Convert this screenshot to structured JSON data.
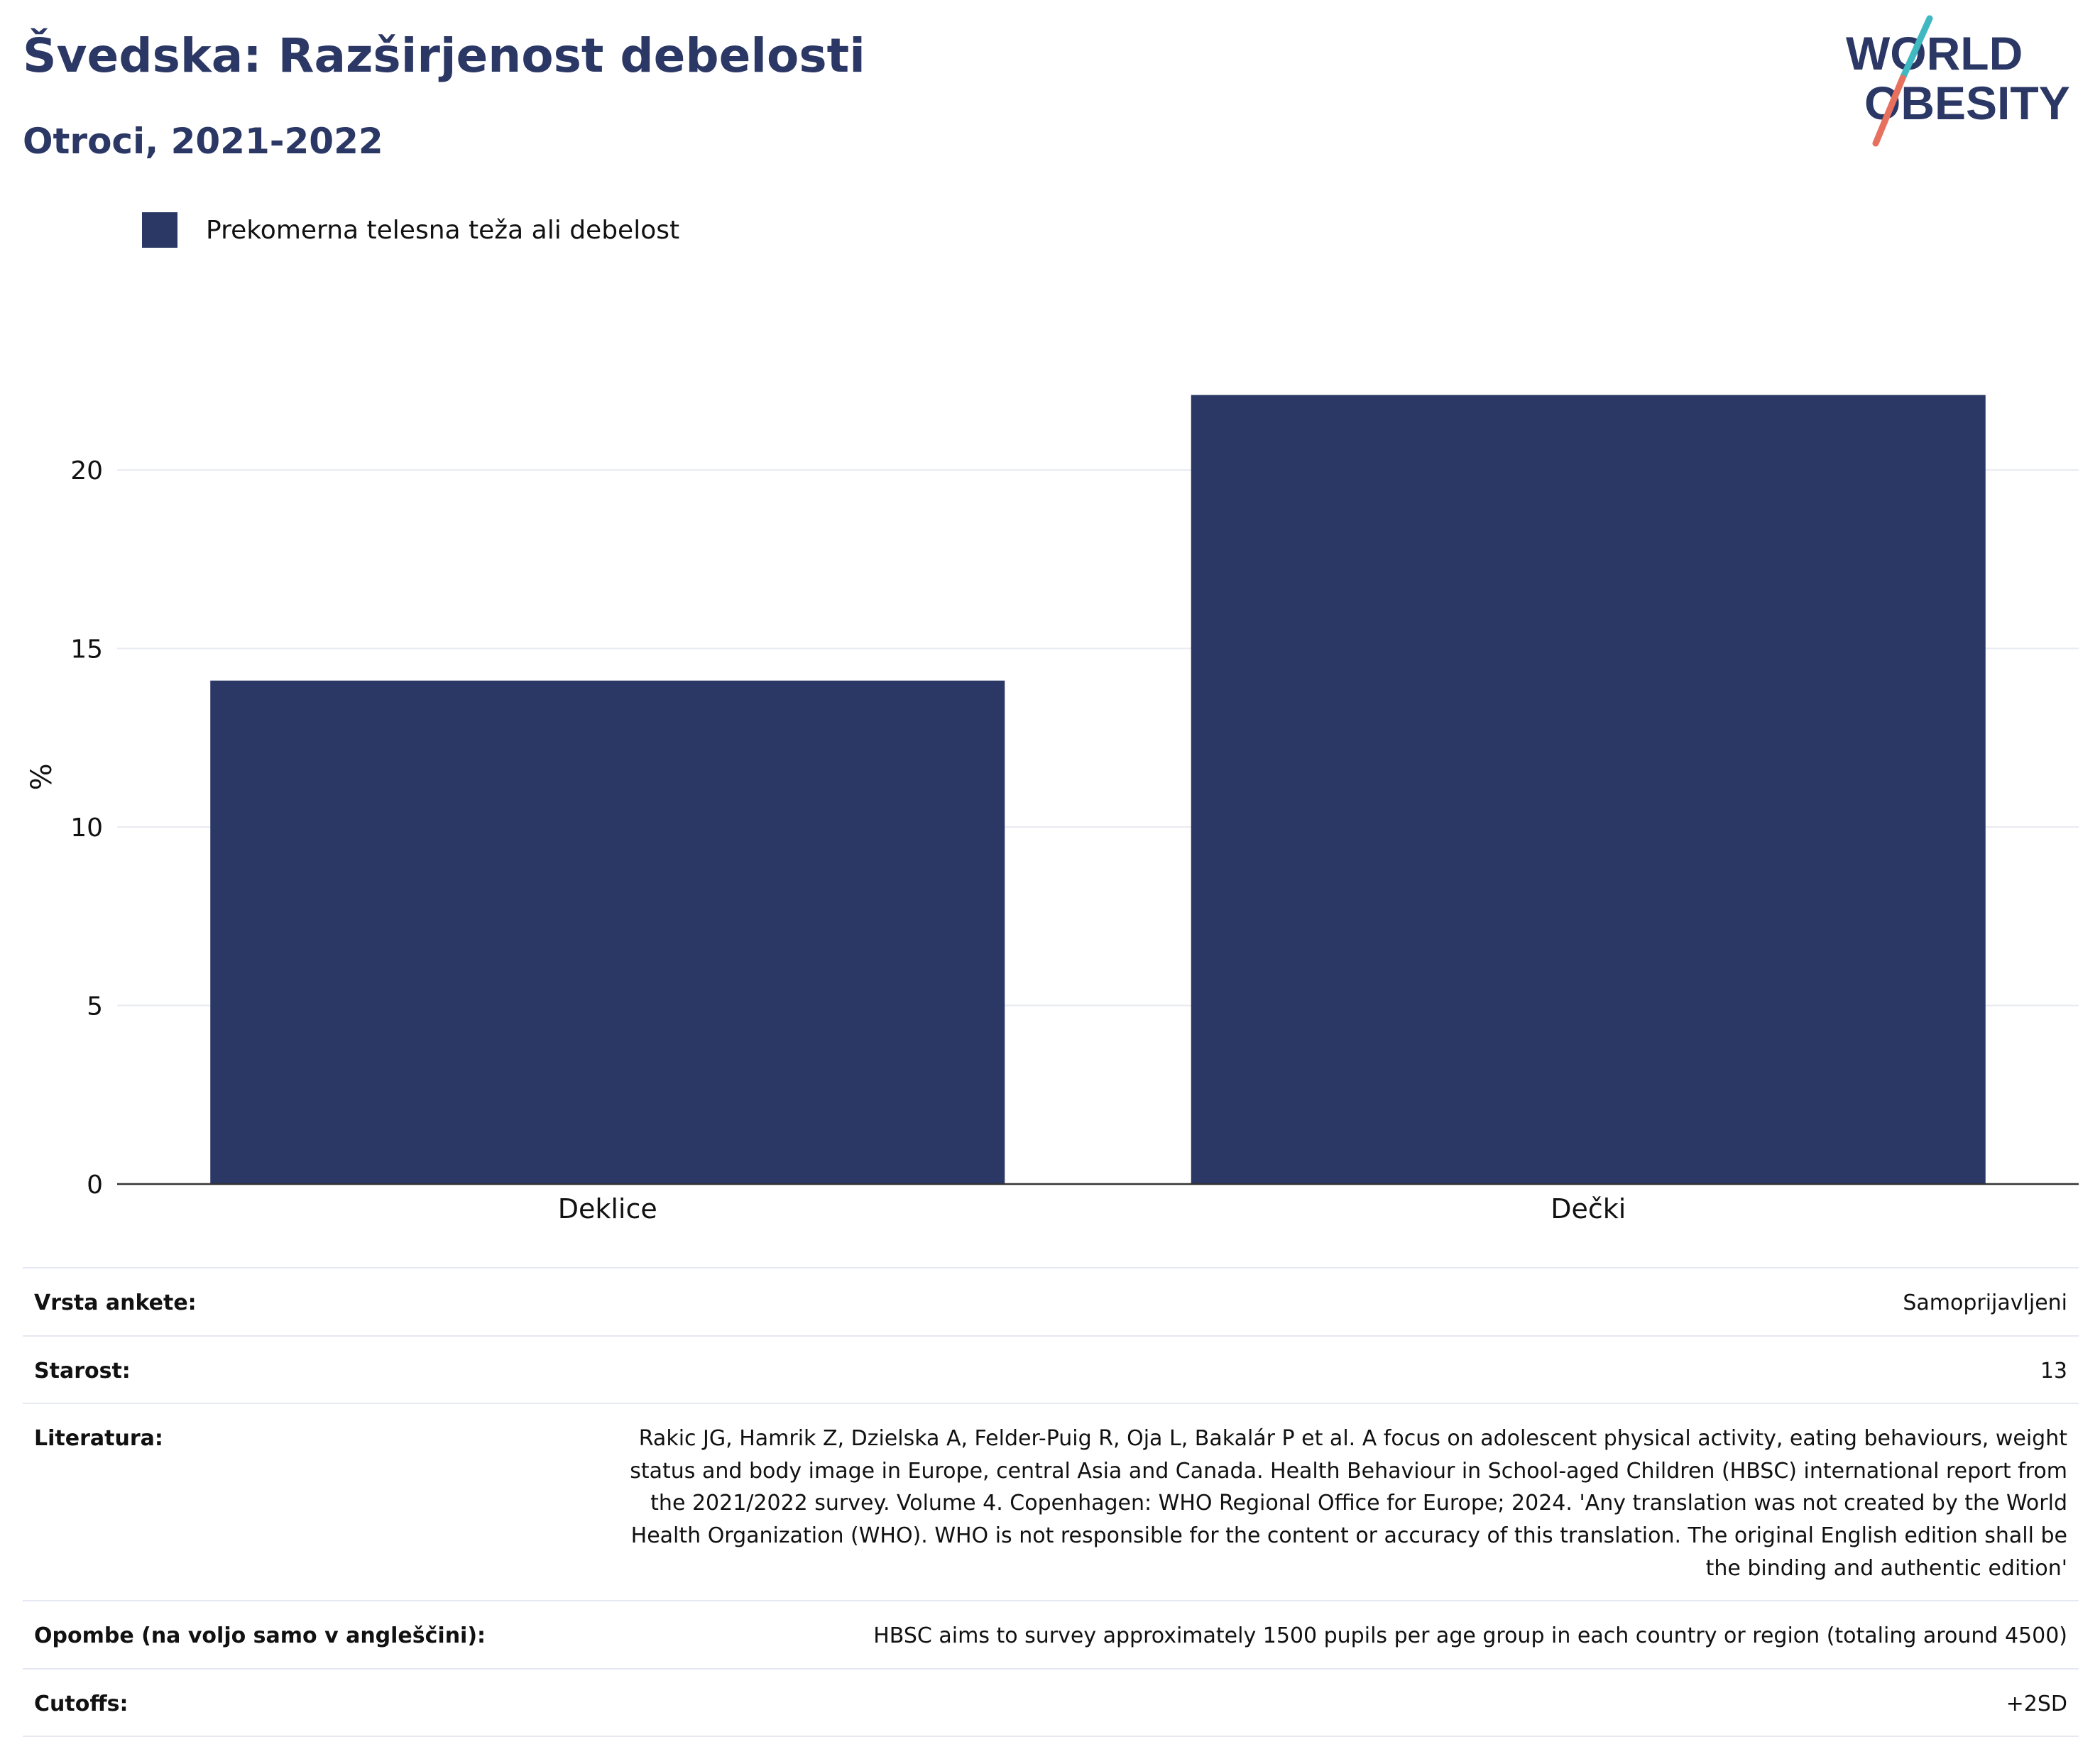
{
  "header": {
    "title": "Švedska: Razširjenost debelosti",
    "subtitle": "Otroci, 2021-2022"
  },
  "logo": {
    "line1": "WORLD",
    "line2": "OBESITY",
    "colors": {
      "text": "#2b3764",
      "slash_top": "#3fb8c2",
      "slash_bottom": "#e8705f"
    }
  },
  "legend": {
    "label": "Prekomerna telesna teža ali debelost",
    "color": "#2b3764"
  },
  "chart_data": {
    "type": "bar",
    "categories": [
      "Deklice",
      "Dečki"
    ],
    "series": [
      {
        "name": "Prekomerna telesna teža ali debelost",
        "values": [
          14.1,
          22.1
        ],
        "color": "#2b3764"
      }
    ],
    "ylabel": "%",
    "xlabel": "",
    "ylim": [
      0,
      24
    ],
    "yticks": [
      0,
      5,
      10,
      15,
      20
    ],
    "grid": true,
    "legend_position": "top-left"
  },
  "info_table": [
    {
      "key": "Vrsta ankete:",
      "value": "Samoprijavljeni"
    },
    {
      "key": "Starost:",
      "value": "13"
    },
    {
      "key": "Literatura:",
      "value": "Rakic JG, Hamrik Z, Dzielska A, Felder-Puig R, Oja L, Bakalár P et al. A focus on adolescent physical activity, eating behaviours, weight status and body image in Europe, central Asia and Canada. Health Behaviour in School-aged Children (HBSC) international report from the 2021/2022 survey. Volume 4. Copenhagen: WHO Regional Office for Europe; 2024. 'Any translation was not created by the World Health Organization (WHO). WHO is not responsible for the content or accuracy of this translation. The original English edition shall be the binding and authentic edition'"
    },
    {
      "key": "Opombe (na voljo samo v angleščini):",
      "value": "HBSC aims to survey approximately 1500 pupils per age group in each country or region (totaling around 4500)"
    },
    {
      "key": "Cutoffs:",
      "value": "+2SD"
    }
  ]
}
